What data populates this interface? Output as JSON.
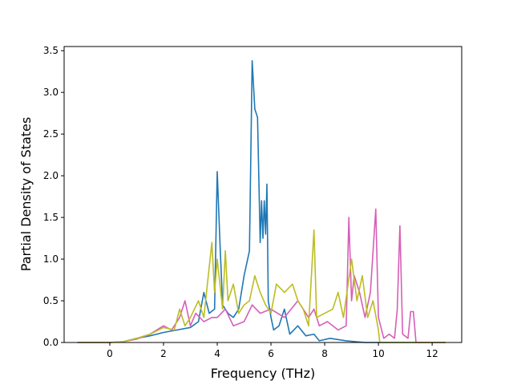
{
  "chart_data": {
    "type": "line",
    "title": "",
    "xlabel": "Frequency (THz)",
    "ylabel": "Partial Density of States",
    "xlim": [
      -1.7,
      13.1
    ],
    "ylim": [
      0,
      3.55
    ],
    "xticks": [
      "0",
      "2",
      "4",
      "6",
      "8",
      "10",
      "12"
    ],
    "yticks": [
      "0.0",
      "0.5",
      "1.0",
      "1.5",
      "2.0",
      "2.5",
      "3.0",
      "3.5"
    ],
    "grid": false,
    "series": [
      {
        "color": "#1f77b4",
        "points": [
          [
            -1.2,
            0
          ],
          [
            0,
            0
          ],
          [
            0.5,
            0.01
          ],
          [
            1.0,
            0.05
          ],
          [
            1.5,
            0.08
          ],
          [
            2.0,
            0.12
          ],
          [
            2.5,
            0.15
          ],
          [
            3.0,
            0.18
          ],
          [
            3.3,
            0.25
          ],
          [
            3.5,
            0.6
          ],
          [
            3.7,
            0.35
          ],
          [
            3.9,
            0.4
          ],
          [
            4.0,
            2.05
          ],
          [
            4.1,
            1.2
          ],
          [
            4.2,
            0.45
          ],
          [
            4.4,
            0.35
          ],
          [
            4.6,
            0.3
          ],
          [
            4.8,
            0.4
          ],
          [
            5.0,
            0.8
          ],
          [
            5.2,
            1.1
          ],
          [
            5.3,
            3.38
          ],
          [
            5.4,
            2.8
          ],
          [
            5.5,
            2.7
          ],
          [
            5.6,
            1.2
          ],
          [
            5.65,
            1.7
          ],
          [
            5.7,
            1.25
          ],
          [
            5.75,
            1.7
          ],
          [
            5.8,
            1.3
          ],
          [
            5.85,
            1.9
          ],
          [
            5.9,
            0.5
          ],
          [
            6.0,
            0.3
          ],
          [
            6.1,
            0.15
          ],
          [
            6.3,
            0.2
          ],
          [
            6.5,
            0.4
          ],
          [
            6.7,
            0.1
          ],
          [
            7.0,
            0.2
          ],
          [
            7.3,
            0.08
          ],
          [
            7.6,
            0.1
          ],
          [
            7.8,
            0.02
          ],
          [
            8.2,
            0.05
          ],
          [
            8.8,
            0.02
          ],
          [
            9.5,
            0.0
          ],
          [
            12.5,
            0
          ]
        ]
      },
      {
        "color": "#d65fb8",
        "points": [
          [
            -1.2,
            0
          ],
          [
            0,
            0
          ],
          [
            0.5,
            0.01
          ],
          [
            1.0,
            0.04
          ],
          [
            1.5,
            0.1
          ],
          [
            2.0,
            0.2
          ],
          [
            2.3,
            0.15
          ],
          [
            2.6,
            0.3
          ],
          [
            2.8,
            0.5
          ],
          [
            3.0,
            0.2
          ],
          [
            3.2,
            0.35
          ],
          [
            3.5,
            0.25
          ],
          [
            3.8,
            0.3
          ],
          [
            4.0,
            0.3
          ],
          [
            4.3,
            0.4
          ],
          [
            4.6,
            0.2
          ],
          [
            5.0,
            0.25
          ],
          [
            5.3,
            0.45
          ],
          [
            5.6,
            0.35
          ],
          [
            6.0,
            0.4
          ],
          [
            6.5,
            0.3
          ],
          [
            7.0,
            0.5
          ],
          [
            7.4,
            0.3
          ],
          [
            7.6,
            0.4
          ],
          [
            7.8,
            0.2
          ],
          [
            8.1,
            0.25
          ],
          [
            8.5,
            0.15
          ],
          [
            8.8,
            0.2
          ],
          [
            8.9,
            1.5
          ],
          [
            9.0,
            0.5
          ],
          [
            9.1,
            0.8
          ],
          [
            9.3,
            0.6
          ],
          [
            9.5,
            0.3
          ],
          [
            9.7,
            0.6
          ],
          [
            9.9,
            1.6
          ],
          [
            10.0,
            0.3
          ],
          [
            10.2,
            0.05
          ],
          [
            10.4,
            0.1
          ],
          [
            10.6,
            0.05
          ],
          [
            10.7,
            0.4
          ],
          [
            10.8,
            1.4
          ],
          [
            10.9,
            0.1
          ],
          [
            11.1,
            0.05
          ],
          [
            11.2,
            0.37
          ],
          [
            11.3,
            0.37
          ],
          [
            11.4,
            0.0
          ],
          [
            12.5,
            0
          ]
        ]
      },
      {
        "color": "#bcbd22",
        "points": [
          [
            -1.2,
            0
          ],
          [
            0,
            0
          ],
          [
            0.5,
            0.01
          ],
          [
            1.0,
            0.05
          ],
          [
            1.5,
            0.1
          ],
          [
            2.0,
            0.18
          ],
          [
            2.4,
            0.15
          ],
          [
            2.6,
            0.4
          ],
          [
            2.8,
            0.2
          ],
          [
            3.0,
            0.3
          ],
          [
            3.3,
            0.5
          ],
          [
            3.5,
            0.3
          ],
          [
            3.8,
            1.2
          ],
          [
            3.9,
            0.6
          ],
          [
            4.0,
            1.0
          ],
          [
            4.2,
            0.4
          ],
          [
            4.3,
            1.1
          ],
          [
            4.4,
            0.5
          ],
          [
            4.6,
            0.7
          ],
          [
            4.8,
            0.35
          ],
          [
            5.0,
            0.45
          ],
          [
            5.2,
            0.5
          ],
          [
            5.4,
            0.8
          ],
          [
            5.6,
            0.6
          ],
          [
            5.8,
            0.45
          ],
          [
            6.0,
            0.35
          ],
          [
            6.2,
            0.7
          ],
          [
            6.5,
            0.6
          ],
          [
            6.8,
            0.7
          ],
          [
            7.0,
            0.5
          ],
          [
            7.2,
            0.4
          ],
          [
            7.4,
            0.2
          ],
          [
            7.6,
            1.35
          ],
          [
            7.7,
            0.3
          ],
          [
            8.0,
            0.35
          ],
          [
            8.3,
            0.4
          ],
          [
            8.5,
            0.6
          ],
          [
            8.7,
            0.3
          ],
          [
            9.0,
            1.0
          ],
          [
            9.2,
            0.5
          ],
          [
            9.4,
            0.8
          ],
          [
            9.6,
            0.3
          ],
          [
            9.8,
            0.5
          ],
          [
            10.0,
            0.15
          ],
          [
            10.05,
            0.0
          ],
          [
            12.5,
            0
          ]
        ]
      }
    ]
  }
}
